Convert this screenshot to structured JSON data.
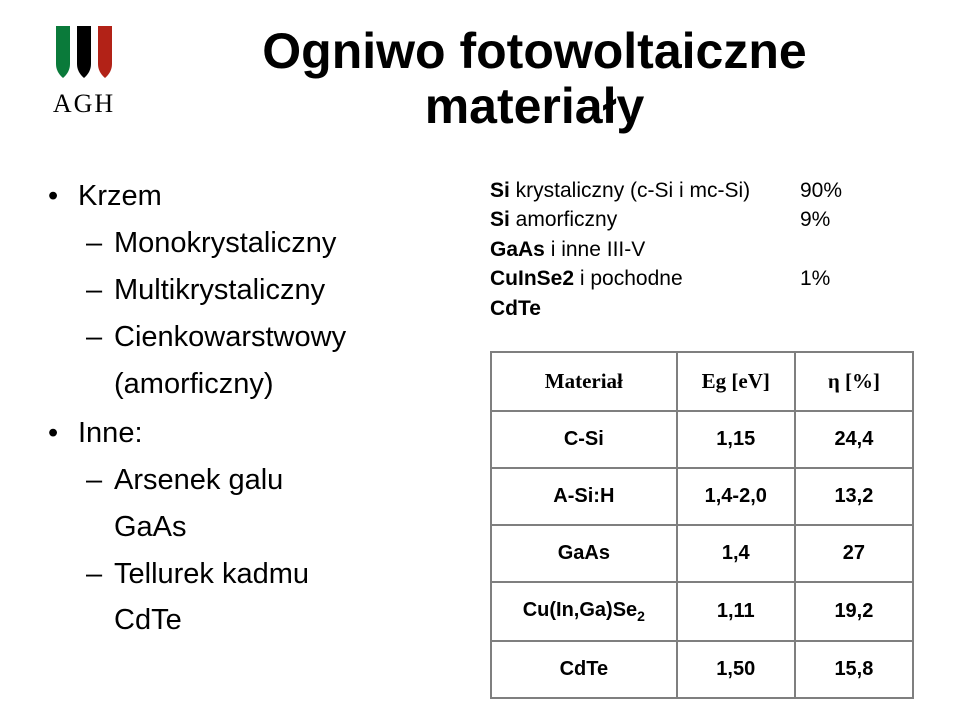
{
  "logo": {
    "text": "AGH",
    "bar_colors": [
      "#0a7a3a",
      "#000000",
      "#b22217"
    ]
  },
  "title": {
    "line1": "Ogniwo fotowoltaiczne",
    "line2": "materiały"
  },
  "left": {
    "items": [
      {
        "label": "Krzem",
        "sub": [
          {
            "label": "Monokrystaliczny"
          },
          {
            "label": "Multikrystaliczny"
          },
          {
            "label": "Cienkowarstwowy"
          },
          {
            "label": "(amorficzny)",
            "no_dash": true
          }
        ]
      },
      {
        "label": "Inne:",
        "sub": [
          {
            "label": "Arsenek galu"
          },
          {
            "label": "GaAs",
            "no_dash": true
          },
          {
            "label": "Tellurek kadmu"
          },
          {
            "label": "CdTe",
            "no_dash": true
          }
        ]
      }
    ]
  },
  "right_lines": [
    {
      "bold": "Si",
      "rest": " krystaliczny (c-Si i mc-Si)",
      "pct": "90%"
    },
    {
      "bold": "Si",
      "rest": " amorficzny",
      "pct": "9%"
    },
    {
      "bold": "GaAs",
      "rest": " i inne III-V",
      "pct": ""
    },
    {
      "bold": "CuInSe2",
      "rest": " i pochodne",
      "pct": "1%"
    },
    {
      "bold": "CdTe",
      "rest": "",
      "pct": ""
    }
  ],
  "table": {
    "headers": [
      "Materiał",
      "Eg [eV]",
      "η [%]"
    ],
    "rows": [
      [
        "C-Si",
        "1,15",
        "24,4"
      ],
      [
        "A-Si:H",
        "1,4-2,0",
        "13,2"
      ],
      [
        "GaAs",
        "1,4",
        "27"
      ],
      [
        "Cu(In,Ga)Se₂",
        "1,11",
        "19,2"
      ],
      [
        "CdTe",
        "1,50",
        "15,8"
      ]
    ],
    "border_color": "#7f7f7f",
    "header_font": "Times New Roman",
    "body_font": "Arial",
    "header_fontsize": 21,
    "body_fontsize": 20
  },
  "background_color": "#ffffff",
  "text_color": "#000000"
}
